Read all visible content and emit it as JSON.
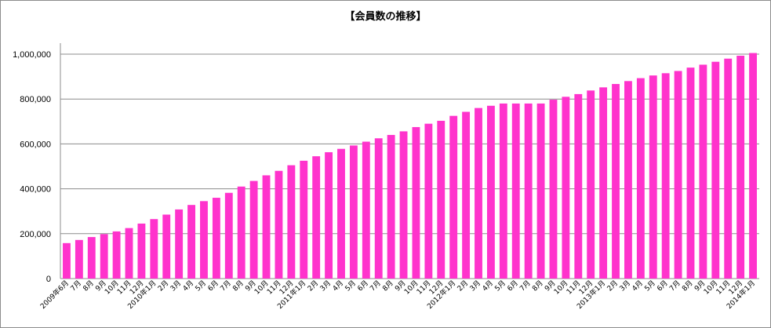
{
  "chart_data": {
    "type": "bar",
    "title": "【会員数の推移】",
    "xlabel": "",
    "ylabel": "",
    "ylim": [
      0,
      1000000
    ],
    "yticks": [
      0,
      200000,
      400000,
      600000,
      800000,
      1000000
    ],
    "ytick_labels": [
      "0",
      "200,000",
      "400,000",
      "600,000",
      "800,000",
      "1,000,000"
    ],
    "grid": true,
    "legend": "none",
    "bar_color": "#ff33cc",
    "categories": [
      "2009年6月",
      "7月",
      "8月",
      "9月",
      "10月",
      "11月",
      "12月",
      "2010年1月",
      "2月",
      "3月",
      "4月",
      "5月",
      "6月",
      "7月",
      "8月",
      "9月",
      "10月",
      "11月",
      "12月",
      "2011年1月",
      "2月",
      "3月",
      "4月",
      "5月",
      "6月",
      "7月",
      "8月",
      "9月",
      "10月",
      "11月",
      "12月",
      "2012年1月",
      "2月",
      "3月",
      "4月",
      "5月",
      "6月",
      "7月",
      "8月",
      "9月",
      "10月",
      "11月",
      "12月",
      "2013年1月",
      "2月",
      "3月",
      "4月",
      "5月",
      "6月",
      "7月",
      "8月",
      "9月",
      "10月",
      "11月",
      "12月",
      "2014年1月"
    ],
    "values": [
      158000,
      172000,
      185000,
      198000,
      210000,
      225000,
      245000,
      265000,
      285000,
      308000,
      328000,
      345000,
      360000,
      382000,
      410000,
      435000,
      460000,
      480000,
      505000,
      525000,
      545000,
      563000,
      578000,
      593000,
      610000,
      625000,
      640000,
      656000,
      675000,
      690000,
      703000,
      725000,
      743000,
      760000,
      770000,
      780000,
      780000,
      780000,
      780000,
      797000,
      810000,
      822000,
      838000,
      852000,
      867000,
      880000,
      893000,
      905000,
      915000,
      925000,
      940000,
      953000,
      966000,
      980000,
      993000,
      1005000
    ]
  }
}
